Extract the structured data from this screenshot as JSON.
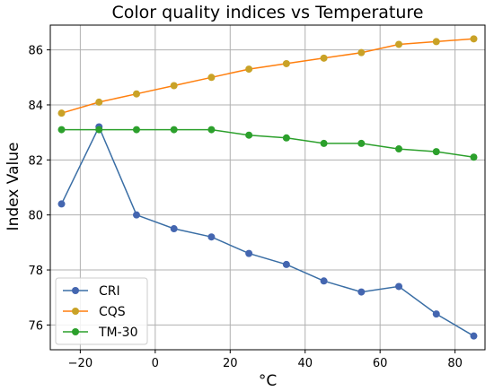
{
  "chart_data": {
    "type": "line",
    "title": "Color quality indices vs Temperature",
    "xlabel": "°C",
    "ylabel": "Index Value",
    "xlim": [
      -28,
      88
    ],
    "ylim": [
      75.1,
      86.9
    ],
    "x_ticks": [
      -20,
      0,
      20,
      40,
      60,
      80
    ],
    "y_ticks": [
      76,
      78,
      80,
      82,
      84,
      86
    ],
    "x_tick_labels": [
      "−20",
      "0",
      "20",
      "40",
      "60",
      "80"
    ],
    "y_tick_labels": [
      "76",
      "78",
      "80",
      "82",
      "84",
      "86"
    ],
    "grid": true,
    "legend_position": "lower-left",
    "x": [
      -25,
      -15,
      -5,
      5,
      15,
      25,
      35,
      45,
      55,
      65,
      75,
      85
    ],
    "series": [
      {
        "name": "CRI",
        "color": "#3a6ea5",
        "marker_color": "#4466b0",
        "values": [
          80.4,
          83.2,
          80.0,
          79.5,
          79.2,
          78.6,
          78.2,
          77.6,
          77.2,
          77.4,
          76.4,
          75.6
        ]
      },
      {
        "name": "CQS",
        "color": "#ff7f0e",
        "marker_color": "#c9a227",
        "values": [
          83.7,
          84.1,
          84.4,
          84.7,
          85.0,
          85.3,
          85.5,
          85.7,
          85.9,
          86.2,
          86.3,
          86.4
        ]
      },
      {
        "name": "TM-30",
        "color": "#2ca02c",
        "marker_color": "#2ca02c",
        "values": [
          83.1,
          83.1,
          83.1,
          83.1,
          83.1,
          82.9,
          82.8,
          82.6,
          82.6,
          82.4,
          82.3,
          82.1
        ]
      }
    ]
  }
}
